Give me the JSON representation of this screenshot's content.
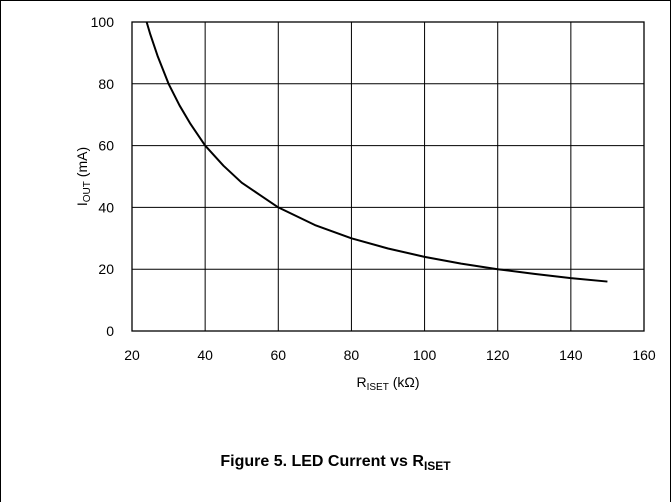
{
  "chart_data": {
    "type": "line",
    "xlim": [
      20,
      160
    ],
    "ylim": [
      0,
      100
    ],
    "x_ticks": [
      20,
      40,
      60,
      80,
      100,
      120,
      140,
      160
    ],
    "y_ticks": [
      0,
      20,
      40,
      60,
      80,
      100
    ],
    "grid": true,
    "xlabel": {
      "main": "R",
      "sub": "ISET",
      "suffix": " (kΩ)"
    },
    "ylabel": {
      "main": "I",
      "sub": "OUT",
      "suffix": " (mA)"
    },
    "series": [
      {
        "color": "#000000",
        "x": [
          24,
          25,
          27,
          30,
          33,
          36,
          40,
          45,
          50,
          55,
          60,
          70,
          80,
          90,
          100,
          110,
          120,
          130,
          140,
          150
        ],
        "y": [
          100,
          96,
          89,
          80,
          73,
          67,
          60,
          53.5,
          48,
          44,
          40,
          34.3,
          30,
          26.7,
          24,
          21.8,
          20,
          18.5,
          17.1,
          16
        ]
      }
    ]
  },
  "caption": {
    "main": "Figure 5. LED Current vs R",
    "sub": "ISET"
  }
}
